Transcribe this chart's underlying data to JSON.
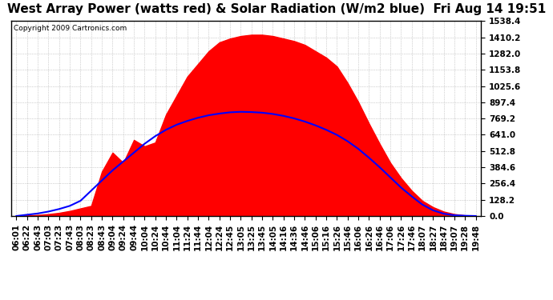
{
  "title": "West Array Power (watts red) & Solar Radiation (W/m2 blue)  Fri Aug 14 19:51",
  "copyright": "Copyright 2009 Cartronics.com",
  "y_ticks": [
    0.0,
    128.2,
    256.4,
    384.6,
    512.8,
    641.0,
    769.2,
    897.4,
    1025.6,
    1153.8,
    1282.0,
    1410.2,
    1538.4
  ],
  "ylim": [
    0.0,
    1538.4
  ],
  "x_labels": [
    "06:01",
    "06:22",
    "06:43",
    "07:03",
    "07:23",
    "07:43",
    "08:03",
    "08:23",
    "08:43",
    "09:04",
    "09:24",
    "09:44",
    "10:04",
    "10:24",
    "10:44",
    "11:04",
    "11:24",
    "11:44",
    "12:04",
    "12:24",
    "12:45",
    "13:05",
    "13:25",
    "13:45",
    "14:05",
    "14:16",
    "14:36",
    "14:46",
    "15:06",
    "15:16",
    "15:26",
    "15:46",
    "16:06",
    "16:26",
    "16:46",
    "17:06",
    "17:26",
    "17:46",
    "18:07",
    "18:27",
    "18:47",
    "19:07",
    "19:28",
    "19:48"
  ],
  "power": [
    0,
    5,
    8,
    15,
    25,
    40,
    60,
    80,
    350,
    500,
    420,
    600,
    550,
    580,
    800,
    950,
    1100,
    1200,
    1300,
    1370,
    1400,
    1420,
    1430,
    1430,
    1420,
    1400,
    1380,
    1350,
    1300,
    1250,
    1180,
    1050,
    900,
    730,
    570,
    420,
    300,
    200,
    120,
    70,
    35,
    15,
    5,
    2
  ],
  "radiation": [
    0,
    10,
    20,
    35,
    55,
    80,
    120,
    200,
    280,
    360,
    430,
    500,
    570,
    630,
    680,
    720,
    750,
    775,
    795,
    808,
    818,
    822,
    820,
    815,
    805,
    790,
    770,
    745,
    715,
    680,
    640,
    590,
    530,
    460,
    385,
    305,
    225,
    155,
    90,
    45,
    18,
    6,
    2,
    0
  ],
  "background_color": "#ffffff",
  "plot_bg_color": "#ffffff",
  "fill_color": "#ff0000",
  "line_color": "#0000ff",
  "grid_color": "#aaaaaa",
  "title_fontsize": 11,
  "tick_fontsize": 7.5,
  "figsize": [
    6.9,
    3.75
  ],
  "dpi": 100
}
